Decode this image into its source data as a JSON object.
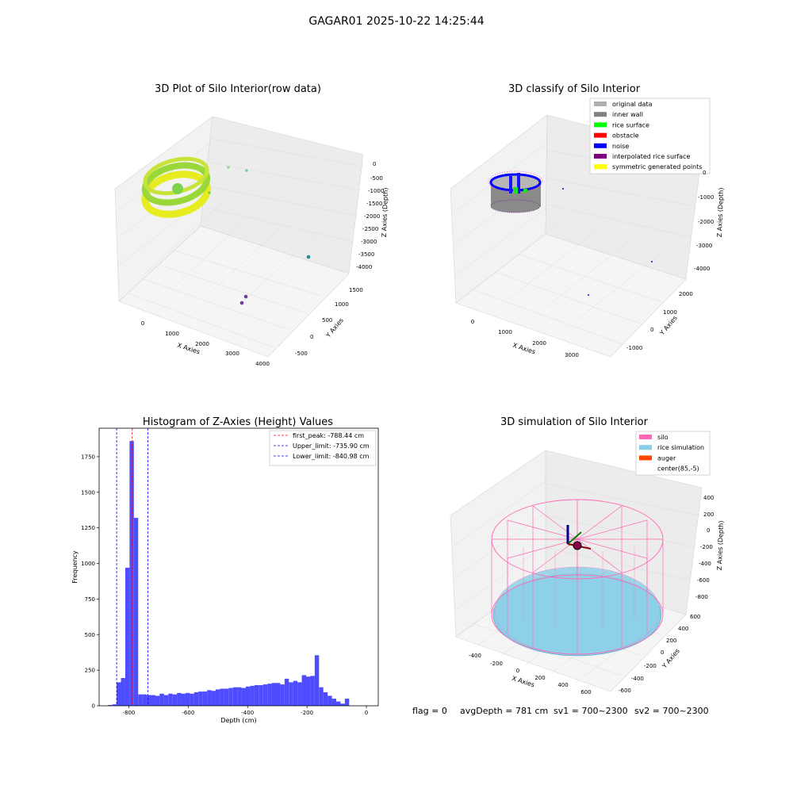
{
  "figure": {
    "suptitle": "GAGAR01 2025-10-22 14:25:44",
    "footer": {
      "flag": "flag = 0",
      "avg_depth": "avgDepth = 781 cm",
      "sv1": "sv1 = 700~2300",
      "sv2": "sv2 = 700~2300"
    }
  },
  "colors": {
    "hist_bar": "#4d4dff",
    "first_peak_line": "#ff0000",
    "limit_lines": "#0000ff",
    "silo": "#ff69b4",
    "rice_simulation": "#87ceeb",
    "auger": "#ff4500"
  },
  "panels": {
    "raw": {
      "title": "3D Plot of Silo Interior(row data)",
      "xlabel": "X Axies",
      "ylabel": "Y Axies",
      "zlabel": "Z Axies (Depth)",
      "xticks": [
        "0",
        "1000",
        "2000",
        "3000",
        "4000"
      ],
      "yticks": [
        "-500",
        "0",
        "500",
        "1000",
        "1500"
      ],
      "zticks": [
        "0",
        "-500",
        "-1000",
        "-1500",
        "-2000",
        "-2500",
        "-3000",
        "-3500",
        "-4000"
      ]
    },
    "classify": {
      "title": "3D classify of Silo Interior",
      "xlabel": "X Axies",
      "ylabel": "Y Axies",
      "zlabel": "Z Axies (Depth)",
      "xticks": [
        "0",
        "1000",
        "2000",
        "3000"
      ],
      "yticks": [
        "-1000",
        "0",
        "1000",
        "2000"
      ],
      "zticks": [
        "0",
        "-1000",
        "-2000",
        "-3000",
        "-4000"
      ],
      "legend": [
        {
          "label": "original data",
          "color": "#b0b0b0"
        },
        {
          "label": "inner wall",
          "color": "#808080"
        },
        {
          "label": "rice surface",
          "color": "#00ff00"
        },
        {
          "label": "obstacle",
          "color": "#ff0000"
        },
        {
          "label": "noise",
          "color": "#0000ff"
        },
        {
          "label": "interpolated rice surface",
          "color": "#800080"
        },
        {
          "label": "symmetric generated points",
          "color": "#ffff00"
        }
      ]
    },
    "simulation": {
      "title": "3D simulation of Silo Interior",
      "xlabel": "X Axies",
      "ylabel": "Y Axies",
      "zlabel": "Z Axies (Depth)",
      "xticks": [
        "-400",
        "-200",
        "0",
        "200",
        "400",
        "600"
      ],
      "yticks": [
        "-600",
        "-400",
        "-200",
        "0",
        "200",
        "400",
        "600"
      ],
      "zticks": [
        "400",
        "200",
        "0",
        "-200",
        "-400",
        "-600",
        "-800"
      ],
      "legend": [
        {
          "label": "silo",
          "color": "#ff69b4"
        },
        {
          "label": "rice simulation",
          "color": "#87ceeb"
        },
        {
          "label": "auger",
          "color": "#ff4500"
        },
        {
          "label": "center(85,-5)",
          "color": ""
        }
      ]
    }
  },
  "chart_data": {
    "type": "bar",
    "title": "Histogram of Z-Axies (Height) Values",
    "xlabel": "Depth (cm)",
    "ylabel": "Frequency",
    "xlim": [
      -900,
      40
    ],
    "ylim": [
      0,
      1950
    ],
    "xticks": [
      -800,
      -600,
      -400,
      -200,
      0
    ],
    "yticks": [
      0,
      250,
      500,
      750,
      1000,
      1250,
      1500,
      1750
    ],
    "bin_width": 14.5,
    "bins_start": [
      -870,
      -855.5,
      -841,
      -826.5,
      -812,
      -797.5,
      -783,
      -768.5,
      -754,
      -739.5,
      -725,
      -710.5,
      -696,
      -681.5,
      -667,
      -652.5,
      -638,
      -623.5,
      -609,
      -594.5,
      -580,
      -565.5,
      -551,
      -536.5,
      -522,
      -507.5,
      -493,
      -478.5,
      -464,
      -449.5,
      -435,
      -420.5,
      -406,
      -391.5,
      -377,
      -362.5,
      -348,
      -333.5,
      -319,
      -304.5,
      -290,
      -275.5,
      -261,
      -246.5,
      -232,
      -217.5,
      -203,
      -188.5,
      -174,
      -159.5,
      -145,
      -130.5,
      -116,
      -101.5,
      -87,
      -72.5,
      -58,
      -43.5,
      -29,
      -14.5
    ],
    "values": [
      5,
      10,
      165,
      195,
      970,
      1860,
      1320,
      80,
      80,
      75,
      75,
      70,
      85,
      75,
      85,
      80,
      90,
      85,
      90,
      85,
      95,
      100,
      100,
      110,
      105,
      115,
      120,
      120,
      125,
      130,
      130,
      125,
      135,
      140,
      145,
      145,
      150,
      155,
      160,
      160,
      150,
      190,
      165,
      175,
      165,
      215,
      205,
      210,
      355,
      130,
      95,
      70,
      50,
      30,
      15,
      50,
      0,
      0,
      0,
      0
    ],
    "vlines": [
      {
        "label": "first_peak: -788.44 cm",
        "x": -788.44,
        "color": "#ff0000"
      },
      {
        "label": "Upper_limit: -735.90 cm",
        "x": -735.9,
        "color": "#0000ff"
      },
      {
        "label": "Lower_limit: -840.98 cm",
        "x": -840.98,
        "color": "#0000ff"
      }
    ],
    "legend_position": "top-right",
    "grid": false
  }
}
